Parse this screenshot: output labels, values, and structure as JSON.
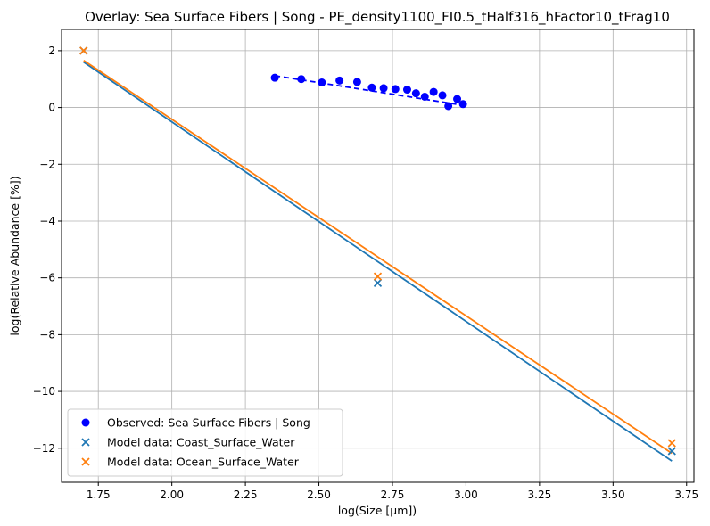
{
  "chart_data": {
    "type": "scatter",
    "title": "Overlay: Sea Surface Fibers | Song - PE_density1100_FI0.5_tHalf316_hFactor10_tFrag10",
    "xlabel": "log(Size [µm])",
    "ylabel": "log(Relative Abundance [%])",
    "xlim": [
      1.625,
      3.775
    ],
    "ylim": [
      -13.2,
      2.75
    ],
    "xticks": [
      1.75,
      2.0,
      2.25,
      2.5,
      2.75,
      3.0,
      3.25,
      3.5,
      3.75
    ],
    "xtick_labels": [
      "1.75",
      "2.00",
      "2.25",
      "2.50",
      "2.75",
      "3.00",
      "3.25",
      "3.50",
      "3.75"
    ],
    "yticks": [
      2,
      0,
      -2,
      -4,
      -6,
      -8,
      -10,
      -12
    ],
    "ytick_labels": [
      "2",
      "0",
      "−2",
      "−4",
      "−6",
      "−8",
      "−10",
      "−12"
    ],
    "grid": true,
    "legend_position": "lower-left",
    "series": [
      {
        "name": "Observed: Sea Surface Fibers | Song",
        "kind": "scatter",
        "marker": "circle",
        "color": "#0000ff",
        "x": [
          2.35,
          2.44,
          2.51,
          2.57,
          2.63,
          2.68,
          2.72,
          2.76,
          2.8,
          2.83,
          2.86,
          2.89,
          2.92,
          2.94,
          2.97,
          2.99
        ],
        "y": [
          1.05,
          1.0,
          0.88,
          0.95,
          0.9,
          0.7,
          0.68,
          0.65,
          0.63,
          0.5,
          0.38,
          0.55,
          0.43,
          0.05,
          0.3,
          0.12
        ]
      },
      {
        "name": "Observed fit",
        "kind": "line",
        "style": "dashed",
        "color": "#0000ff",
        "x": [
          2.35,
          2.99
        ],
        "y": [
          1.12,
          0.08
        ]
      },
      {
        "name": "Model data: Coast_Surface_Water",
        "kind": "scatter",
        "marker": "x",
        "color": "#1f77b4",
        "x": [
          1.7,
          2.7,
          3.7
        ],
        "y": [
          2.0,
          -6.18,
          -12.1
        ]
      },
      {
        "name": "Coast fit",
        "kind": "line",
        "style": "solid",
        "color": "#1f77b4",
        "x": [
          1.7,
          3.7
        ],
        "y": [
          1.6,
          -12.45
        ]
      },
      {
        "name": "Model data: Ocean_Surface_Water",
        "kind": "scatter",
        "marker": "x",
        "color": "#ff7f0e",
        "x": [
          1.7,
          2.7,
          3.7
        ],
        "y": [
          2.0,
          -5.95,
          -11.82
        ]
      },
      {
        "name": "Ocean fit",
        "kind": "line",
        "style": "solid",
        "color": "#ff7f0e",
        "x": [
          1.7,
          3.7
        ],
        "y": [
          1.66,
          -12.18
        ]
      }
    ],
    "legend": [
      {
        "label": "Observed: Sea Surface Fibers | Song",
        "marker": "circle",
        "color": "#0000ff"
      },
      {
        "label": "Model data: Coast_Surface_Water",
        "marker": "x",
        "color": "#1f77b4"
      },
      {
        "label": "Model data: Ocean_Surface_Water",
        "marker": "x",
        "color": "#ff7f0e"
      }
    ]
  }
}
